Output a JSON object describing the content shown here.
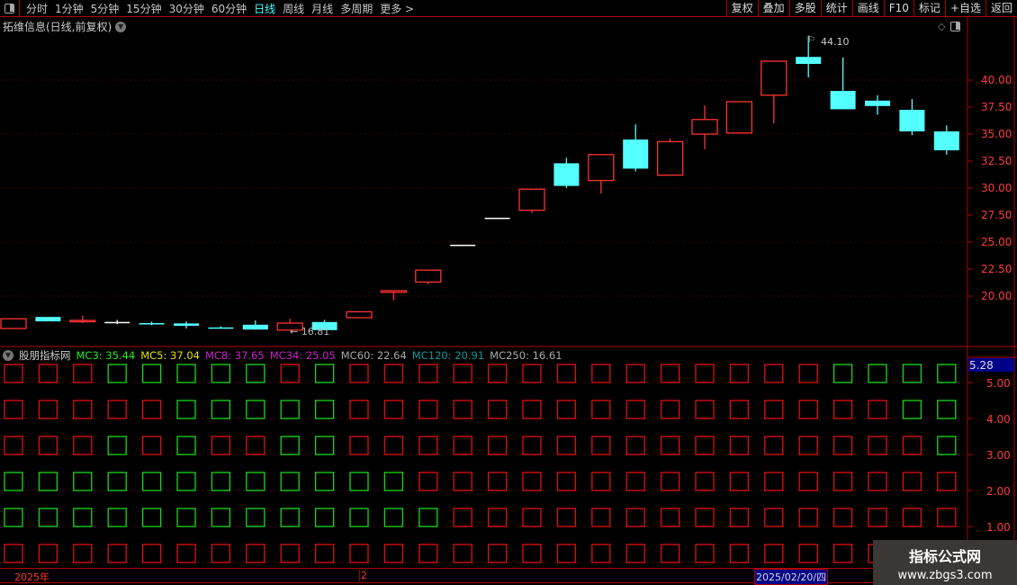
{
  "toolbar": {
    "periods": [
      "分时",
      "1分钟",
      "5分钟",
      "15分钟",
      "30分钟",
      "60分钟",
      "日线",
      "周线",
      "月线",
      "多周期",
      "更多 >"
    ],
    "active": "日线",
    "buttons": [
      "复权",
      "叠加",
      "多股",
      "统计",
      "画线",
      "F10",
      "标记",
      "+自选",
      "返回"
    ]
  },
  "chart": {
    "title": "拓维信息(日线,前复权)",
    "high_label": "44.10",
    "low_label": "16.81",
    "y_ticks": [
      "40.00",
      "37.50",
      "35.00",
      "32.50",
      "30.00",
      "27.50",
      "25.00",
      "22.50",
      "20.00"
    ],
    "colors": {
      "up": "#ff3232",
      "down": "#54ffff",
      "flat": "#ffffff"
    },
    "candles": [
      [
        17.0,
        17.9,
        17.9,
        17.0
      ],
      [
        18.07,
        17.66,
        18.07,
        17.66
      ],
      [
        17.7,
        17.75,
        18.2,
        17.5
      ],
      [
        17.55,
        17.55,
        17.8,
        17.4
      ],
      [
        17.5,
        17.45,
        17.65,
        17.3
      ],
      [
        17.47,
        17.25,
        17.65,
        17.0
      ],
      [
        17.1,
        17.05,
        17.2,
        17.0
      ],
      [
        17.35,
        16.9,
        17.75,
        16.9
      ],
      [
        16.85,
        17.5,
        17.9,
        16.81
      ],
      [
        17.6,
        16.85,
        17.8,
        16.85
      ],
      [
        18.0,
        18.55,
        18.55,
        17.95
      ],
      [
        20.35,
        20.5,
        20.5,
        19.6
      ],
      [
        21.3,
        22.4,
        22.4,
        21.1
      ],
      [
        24.7,
        24.7,
        24.7,
        24.7
      ],
      [
        27.2,
        27.2,
        27.2,
        27.2
      ],
      [
        27.95,
        29.9,
        29.9,
        27.7
      ],
      [
        32.3,
        30.2,
        32.8,
        30.0
      ],
      [
        30.7,
        33.1,
        33.1,
        29.5
      ],
      [
        34.5,
        31.8,
        35.9,
        31.55
      ],
      [
        31.2,
        34.3,
        34.6,
        31.2
      ],
      [
        35.0,
        36.35,
        37.65,
        33.6
      ],
      [
        35.1,
        38.0,
        38.0,
        35.1
      ],
      [
        38.6,
        41.75,
        41.75,
        36.0
      ],
      [
        42.15,
        41.5,
        44.1,
        40.25
      ],
      [
        39.0,
        37.3,
        42.1,
        37.3
      ],
      [
        38.1,
        37.6,
        38.6,
        36.8
      ],
      [
        37.25,
        35.25,
        38.25,
        34.9
      ],
      [
        35.25,
        33.5,
        35.8,
        33.1
      ]
    ]
  },
  "indicator": {
    "name": "股朋指标网",
    "values": [
      {
        "label": "MC3: 35.44",
        "color": "#22ee22"
      },
      {
        "label": "MC5: 37.04",
        "color": "#e0e000"
      },
      {
        "label": "MC8: 37.65",
        "color": "#cc22cc"
      },
      {
        "label": "MC34: 25.05",
        "color": "#cc22cc"
      },
      {
        "label": "MC60: 22.64",
        "color": "#aaaaaa"
      },
      {
        "label": "MC120: 20.91",
        "color": "#119999"
      },
      {
        "label": "MC250: 16.61",
        "color": "#aaaaaa"
      }
    ],
    "current": "5.28",
    "y_ticks": [
      "5.00",
      "4.00",
      "3.00",
      "2.00",
      "1.00"
    ],
    "rows": [
      "RRRGGGGGRGRRRRRRRRRRRRRRGGGG",
      "RRRRRGGGGGRRRRRRRRRRRRRRRRGG",
      "RRRGRGRRGGRRRRRRRRRRRRRRRRRG",
      "GGGGGGGGGGGGRRRRRRRRRRRRRRRR",
      "GGGGGGGGGGGGGRRRRRRRRRRRRRRR",
      "RRRRRRRRRRRRRRRRRRRRRRRRRRRR"
    ],
    "colors": {
      "R": "#e01010",
      "G": "#18d818"
    }
  },
  "datebar": {
    "year": "2025年",
    "month": "2",
    "cursor": "2025/02/20/四"
  },
  "watermark": {
    "line1": "指标公式网",
    "line2": "www.zbgs3.com"
  }
}
